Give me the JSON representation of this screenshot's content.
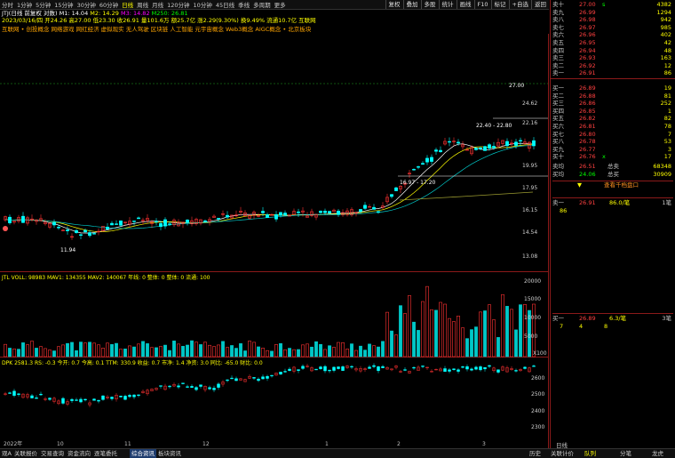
{
  "topbar": {
    "timeframes": [
      "分时",
      "1分钟",
      "5分钟",
      "15分钟",
      "30分钟",
      "60分钟",
      "日线",
      "周线",
      "月线",
      "120分钟",
      "10分钟",
      "45日线",
      "季线",
      "多周期",
      "更多"
    ],
    "active_timeframe": "日线",
    "buttons": [
      "复权",
      "叠加",
      "多股",
      "统计",
      "画线",
      "F10",
      "标记",
      "+自选",
      "返回"
    ]
  },
  "header": {
    "stock_line": "JTJ(日线 前复权 对数)",
    "ma_line": {
      "m1": "M1: 14.04",
      "m2": "M2: 14.29",
      "m3": "M3: 14.82",
      "m250": "M250: 26.81"
    },
    "info_line": "2023/03/16/四 开24.26 高27.00 低23.30 收26.91 量101.6万 额25.7亿 涨2.29(9.30%) 换9.49% 流通10.7亿 互联网",
    "concepts": "互联网 • 创投概念 网络游戏 网红经济 虚拟现实 无人驾驶 区块链 人工智能 元宇宙概念 Web3概念 AIGC概念 • 北京板块"
  },
  "main_chart": {
    "price_labels": [
      "24.62",
      "22.16",
      "19.95",
      "17.95",
      "16.15",
      "14.54",
      "13.08"
    ],
    "annotations": {
      "high": "27.00",
      "range_mid": "22.40 - 22.80",
      "range_low": "16.97 - 17.20",
      "low": "11.94"
    }
  },
  "volume_panel": {
    "title": "JTL VOLL: 98983 MAV1: 134355 MAV2: 140067 年线: 0 整体: 0 整体: 0 流通: 100",
    "labels": [
      "20000",
      "15000",
      "10000",
      "5000"
    ],
    "unit": "X100"
  },
  "index_panel": {
    "title": "DPK  2581.3 RS: -0.3 今开: 0.7 今高: 0.1 TTM: 330.9 收益: 0.7 市净: 1.4 净资: 3.0 同比: -65.0 财比: 0.0",
    "labels": [
      "2600",
      "2500",
      "2400",
      "2300"
    ],
    "dates": [
      "2022年",
      "10",
      "11",
      "12",
      "1",
      "2",
      "3"
    ]
  },
  "orderbook": {
    "sells": [
      {
        "label": "卖十",
        "price": "27.00",
        "vol": "4382",
        "flag": "s"
      },
      {
        "label": "卖九",
        "price": "26.99",
        "vol": "1294"
      },
      {
        "label": "卖八",
        "price": "26.98",
        "vol": "942"
      },
      {
        "label": "卖七",
        "price": "26.97",
        "vol": "985"
      },
      {
        "label": "卖六",
        "price": "26.96",
        "vol": "402"
      },
      {
        "label": "卖五",
        "price": "26.95",
        "vol": "42"
      },
      {
        "label": "卖四",
        "price": "26.94",
        "vol": "48"
      },
      {
        "label": "卖三",
        "price": "26.93",
        "vol": "163"
      },
      {
        "label": "卖二",
        "price": "26.92",
        "vol": "12"
      },
      {
        "label": "卖一",
        "price": "26.91",
        "vol": "86"
      }
    ],
    "buys": [
      {
        "label": "买一",
        "price": "26.89",
        "vol": "19"
      },
      {
        "label": "买二",
        "price": "26.88",
        "vol": "81"
      },
      {
        "label": "买三",
        "price": "26.86",
        "vol": "252"
      },
      {
        "label": "买四",
        "price": "26.85",
        "vol": "1"
      },
      {
        "label": "买五",
        "price": "26.82",
        "vol": "82"
      },
      {
        "label": "买六",
        "price": "26.81",
        "vol": "78"
      },
      {
        "label": "买七",
        "price": "26.80",
        "vol": "7"
      },
      {
        "label": "买八",
        "price": "26.78",
        "vol": "53"
      },
      {
        "label": "买九",
        "price": "26.77",
        "vol": "3"
      },
      {
        "label": "买十",
        "price": "26.76",
        "vol": "17",
        "flag": "x"
      }
    ],
    "avg_sell": {
      "label": "卖均",
      "price": "26.51",
      "tlabel": "总卖",
      "val": "68348"
    },
    "avg_buy": {
      "label": "买均",
      "price": "24.06",
      "tlabel": "总买",
      "val": "30909"
    },
    "hint": "查看千档盘口",
    "sell1": {
      "label": "卖一",
      "price": "26.91",
      "qty": "86.0/笔",
      "n": "1笔",
      "sub": "86"
    },
    "buy1": {
      "label": "买一",
      "price": "26.89",
      "qty": "6.3/笔",
      "n": "3笔",
      "sub": [
        "7",
        "4",
        "8"
      ]
    }
  },
  "bottombar": {
    "left_tabs": [
      "观A",
      "关联报价",
      "交易查询",
      "资金流向",
      "逐笔委托",
      "综合资讯",
      "板块资讯"
    ],
    "right_labels": [
      "历史",
      "关联计价"
    ],
    "right_tabs": [
      "队列",
      "分笔",
      "龙虎"
    ],
    "daily": "日线"
  },
  "colors": {
    "up": "#ff3232",
    "down": "#00ffff",
    "ma1": "#ffffff",
    "ma2": "#ffff00",
    "ma3": "#ff00ff"
  }
}
